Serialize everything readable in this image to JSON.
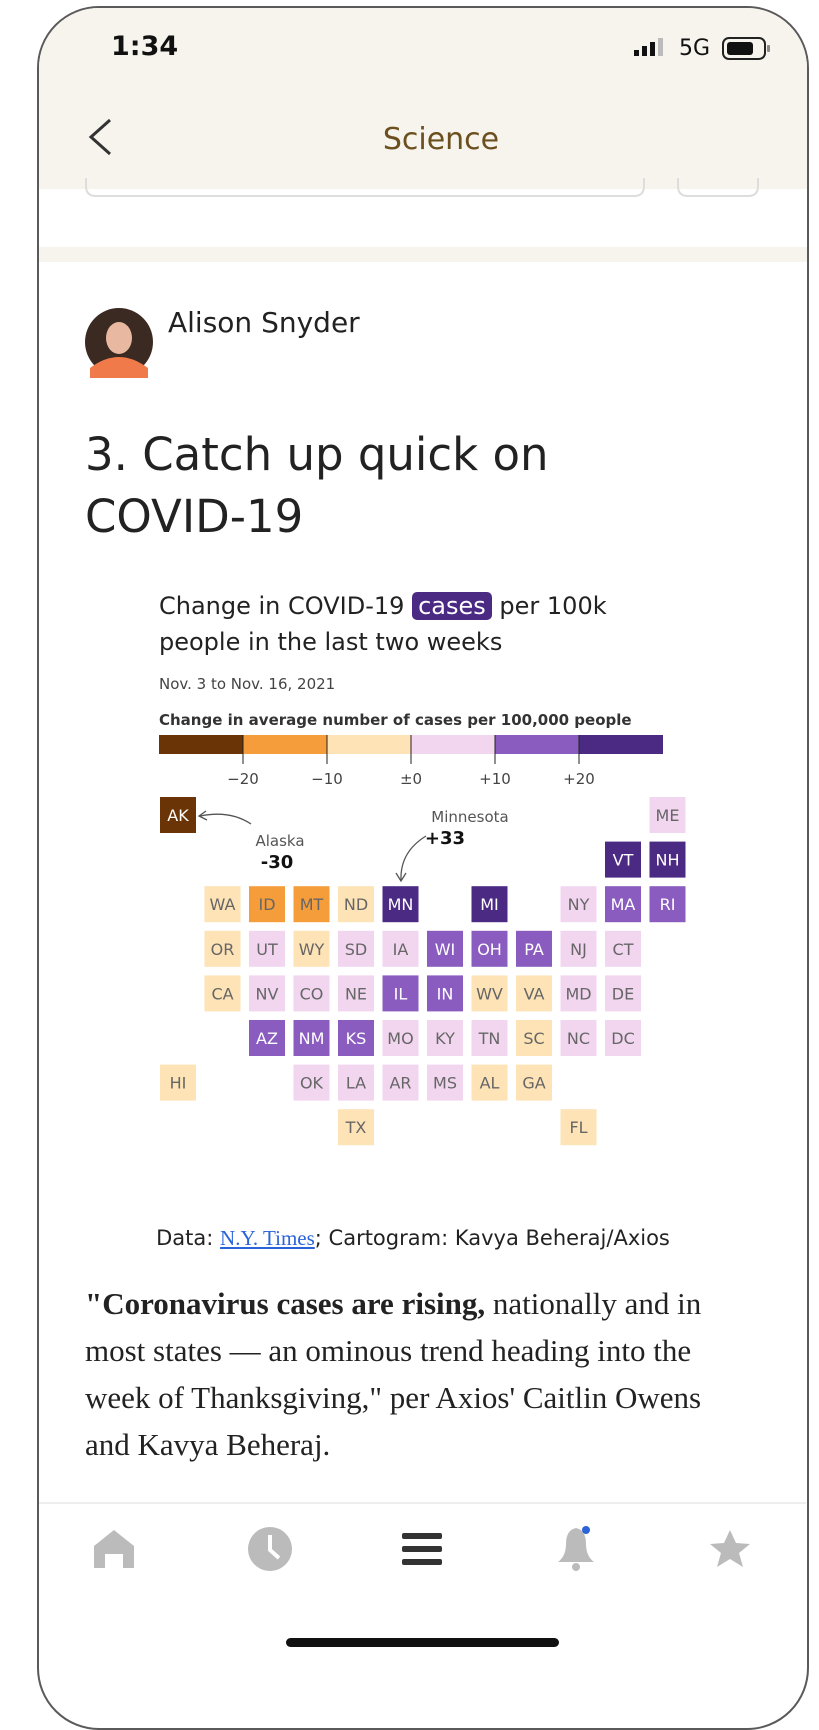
{
  "status_bar": {
    "time": "1:34",
    "network": "5G"
  },
  "nav": {
    "title": "Science"
  },
  "author": {
    "name": "Alison Snyder"
  },
  "headline": "3. Catch up quick on COVID-19",
  "graphic": {
    "title_before": "Change in COVID-19",
    "title_highlight": "cases",
    "title_after": "per 100k people in the last two weeks",
    "date_range": "Nov. 3 to Nov. 16, 2021",
    "legend_title": "Change in average number of cases per 100,000 people",
    "legend_colors": [
      "#6b3406",
      "#f59d3a",
      "#fde3b6",
      "#f2d6f0",
      "#8a5cc0",
      "#4b2a84"
    ],
    "legend_ticks": [
      "−20",
      "−10",
      "±0",
      "+10",
      "+20"
    ],
    "annotations": [
      {
        "label": "Alaska",
        "value": "-30"
      },
      {
        "label": "Minnesota",
        "value": "+33"
      }
    ],
    "tiles": [
      [
        {
          "label": "AK",
          "color": "#6b3406"
        },
        null,
        null,
        null,
        null,
        null,
        null,
        null,
        null,
        null,
        null,
        {
          "label": "ME",
          "color": "#f2d6f0"
        }
      ],
      [
        null,
        null,
        null,
        null,
        null,
        null,
        null,
        null,
        null,
        null,
        {
          "label": "VT",
          "color": "#4b2a84"
        },
        {
          "label": "NH",
          "color": "#4b2a84"
        }
      ],
      [
        null,
        {
          "label": "WA",
          "color": "#fde3b6"
        },
        {
          "label": "ID",
          "color": "#f59d3a"
        },
        {
          "label": "MT",
          "color": "#f59d3a"
        },
        {
          "label": "ND",
          "color": "#fde3b6"
        },
        {
          "label": "MN",
          "color": "#4b2a84"
        },
        null,
        {
          "label": "MI",
          "color": "#4b2a84"
        },
        null,
        {
          "label": "NY",
          "color": "#f2d6f0"
        },
        {
          "label": "MA",
          "color": "#8a5cc0"
        },
        {
          "label": "RI",
          "color": "#8a5cc0"
        }
      ],
      [
        null,
        {
          "label": "OR",
          "color": "#fde3b6"
        },
        {
          "label": "UT",
          "color": "#f2d6f0"
        },
        {
          "label": "WY",
          "color": "#fde3b6"
        },
        {
          "label": "SD",
          "color": "#f2d6f0"
        },
        {
          "label": "IA",
          "color": "#f2d6f0"
        },
        {
          "label": "WI",
          "color": "#8a5cc0"
        },
        {
          "label": "OH",
          "color": "#8a5cc0"
        },
        {
          "label": "PA",
          "color": "#8a5cc0"
        },
        {
          "label": "NJ",
          "color": "#f2d6f0"
        },
        {
          "label": "CT",
          "color": "#f2d6f0"
        },
        null
      ],
      [
        null,
        {
          "label": "CA",
          "color": "#fde3b6"
        },
        {
          "label": "NV",
          "color": "#f2d6f0"
        },
        {
          "label": "CO",
          "color": "#f2d6f0"
        },
        {
          "label": "NE",
          "color": "#f2d6f0"
        },
        {
          "label": "IL",
          "color": "#8a5cc0"
        },
        {
          "label": "IN",
          "color": "#8a5cc0"
        },
        {
          "label": "WV",
          "color": "#fde3b6"
        },
        {
          "label": "VA",
          "color": "#fde3b6"
        },
        {
          "label": "MD",
          "color": "#f2d6f0"
        },
        {
          "label": "DE",
          "color": "#f2d6f0"
        },
        null
      ],
      [
        null,
        null,
        {
          "label": "AZ",
          "color": "#8a5cc0"
        },
        {
          "label": "NM",
          "color": "#8a5cc0"
        },
        {
          "label": "KS",
          "color": "#8a5cc0"
        },
        {
          "label": "MO",
          "color": "#f2d6f0"
        },
        {
          "label": "KY",
          "color": "#f2d6f0"
        },
        {
          "label": "TN",
          "color": "#f2d6f0"
        },
        {
          "label": "SC",
          "color": "#fde3b6"
        },
        {
          "label": "NC",
          "color": "#f2d6f0"
        },
        {
          "label": "DC",
          "color": "#f2d6f0"
        },
        null
      ],
      [
        {
          "label": "HI",
          "color": "#fde3b6"
        },
        null,
        null,
        {
          "label": "OK",
          "color": "#f2d6f0"
        },
        {
          "label": "LA",
          "color": "#f2d6f0"
        },
        {
          "label": "AR",
          "color": "#f2d6f0"
        },
        {
          "label": "MS",
          "color": "#f2d6f0"
        },
        {
          "label": "AL",
          "color": "#fde3b6"
        },
        {
          "label": "GA",
          "color": "#fde3b6"
        },
        null,
        null,
        null
      ],
      [
        null,
        null,
        null,
        null,
        {
          "label": "TX",
          "color": "#fde3b6"
        },
        null,
        null,
        null,
        null,
        {
          "label": "FL",
          "color": "#fde3b6"
        },
        null,
        null
      ]
    ]
  },
  "source": {
    "prefix": "Data:",
    "link": "N.Y. Times",
    "suffix": "; Cartogram: Kavya Beheraj/Axios"
  },
  "body": {
    "bold": "\"Coronavirus cases are rising,",
    "rest": "nationally and in most states — an ominous trend heading into the week of Thanksgiving,\" per Axios' Caitlin Owens and Kavya Beheraj."
  }
}
